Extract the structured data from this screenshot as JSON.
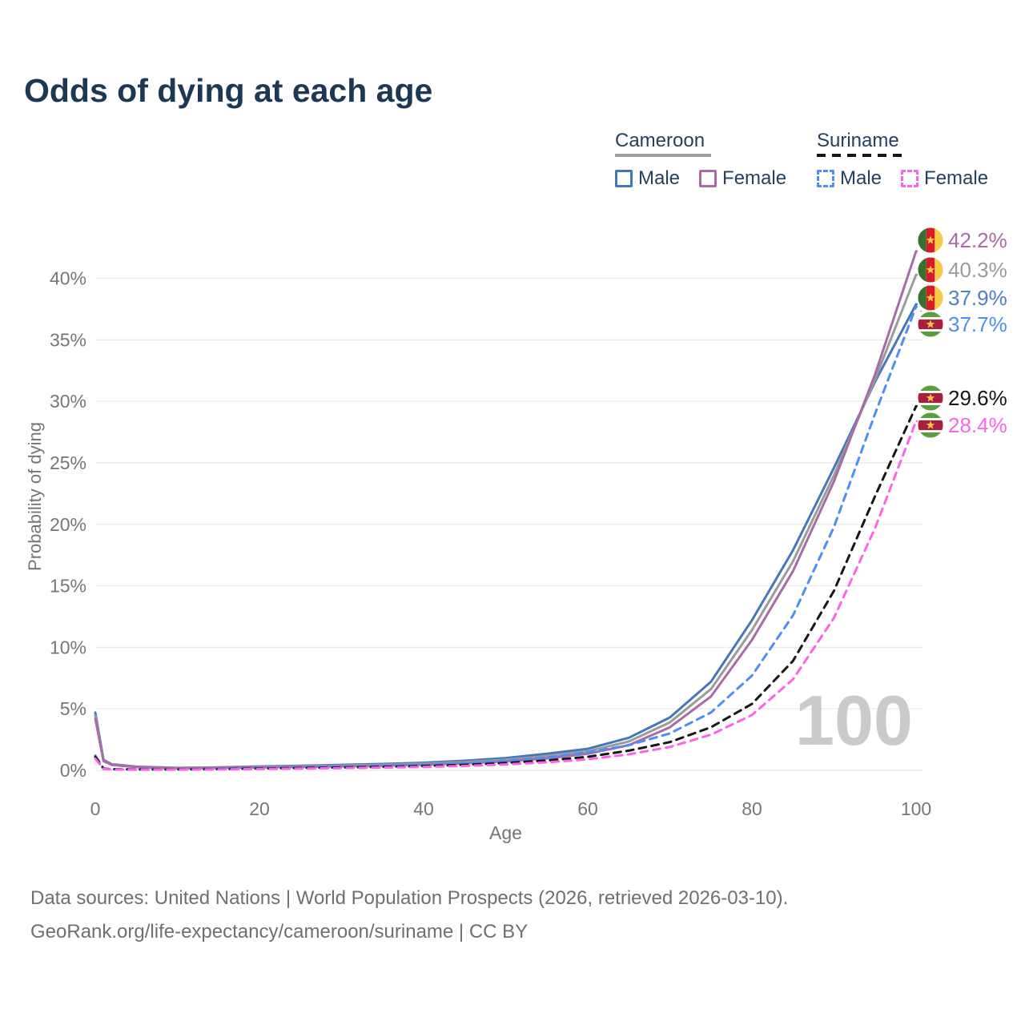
{
  "title": "Odds of dying at each age",
  "legend": {
    "groups": [
      {
        "title": "Cameroon",
        "line_style": "solid",
        "line_color": "#9e9e9e",
        "items": [
          {
            "label": "Male",
            "color": "#4477b9",
            "swatch": "solid"
          },
          {
            "label": "Female",
            "color": "#a96ba5",
            "swatch": "solid"
          }
        ]
      },
      {
        "title": "Suriname",
        "line_style": "dashed",
        "line_color": "#151515",
        "items": [
          {
            "label": "Male",
            "color": "#4d8df6",
            "swatch": "dashed"
          },
          {
            "label": "Female",
            "color": "#fd64e4",
            "swatch": "dashed"
          }
        ]
      }
    ]
  },
  "chart_data": {
    "type": "line",
    "title": "Odds of dying at each age",
    "xlabel": "Age",
    "ylabel": "Probability of dying",
    "xlim": [
      0,
      100
    ],
    "ylim": [
      0,
      44
    ],
    "grid": true,
    "legend_position": "top-right",
    "x_ticks": [
      0,
      20,
      40,
      60,
      80,
      100
    ],
    "y_ticks": [
      0,
      5,
      10,
      15,
      20,
      25,
      30,
      35,
      40
    ],
    "y_tick_labels": [
      "0%",
      "5%",
      "10%",
      "15%",
      "20%",
      "25%",
      "30%",
      "35%",
      "40%"
    ],
    "x": [
      0,
      1,
      2,
      5,
      10,
      15,
      20,
      25,
      30,
      35,
      40,
      45,
      50,
      55,
      60,
      65,
      70,
      75,
      80,
      85,
      90,
      95,
      100
    ],
    "series": [
      {
        "name": "Cameroon Male",
        "country": "cameroon",
        "color": "#4477b9",
        "dashed": false,
        "values": [
          4.7,
          0.85,
          0.5,
          0.3,
          0.2,
          0.25,
          0.32,
          0.38,
          0.45,
          0.52,
          0.62,
          0.78,
          1.0,
          1.35,
          1.75,
          2.65,
          4.3,
          7.2,
          12.2,
          17.9,
          24.6,
          31.6,
          37.9
        ]
      },
      {
        "name": "Cameroon",
        "country": "cameroon",
        "color": "#9b9b9b",
        "dashed": false,
        "values": [
          4.45,
          0.8,
          0.47,
          0.28,
          0.19,
          0.22,
          0.28,
          0.33,
          0.39,
          0.45,
          0.54,
          0.67,
          0.86,
          1.15,
          1.55,
          2.35,
          3.9,
          6.6,
          11.4,
          17.0,
          24.0,
          31.8,
          40.3
        ]
      },
      {
        "name": "Cameroon Female",
        "country": "cameroon",
        "color": "#a96ba5",
        "dashed": false,
        "values": [
          4.2,
          0.75,
          0.45,
          0.26,
          0.17,
          0.2,
          0.24,
          0.28,
          0.33,
          0.38,
          0.46,
          0.57,
          0.73,
          0.97,
          1.35,
          2.05,
          3.5,
          6.0,
          10.6,
          16.2,
          23.5,
          32.2,
          42.2
        ]
      },
      {
        "name": "Suriname Male",
        "country": "suriname",
        "color": "#4d8df6",
        "dashed": true,
        "values": [
          1.2,
          0.15,
          0.1,
          0.08,
          0.08,
          0.12,
          0.2,
          0.25,
          0.3,
          0.36,
          0.45,
          0.58,
          0.78,
          1.05,
          1.45,
          2.05,
          3.0,
          4.7,
          7.7,
          12.6,
          19.8,
          29.0,
          37.7
        ]
      },
      {
        "name": "Suriname",
        "country": "suriname",
        "color": "#161616",
        "dashed": true,
        "values": [
          1.1,
          0.13,
          0.09,
          0.07,
          0.07,
          0.1,
          0.15,
          0.19,
          0.23,
          0.28,
          0.35,
          0.45,
          0.6,
          0.8,
          1.1,
          1.6,
          2.3,
          3.5,
          5.4,
          8.9,
          14.6,
          22.3,
          29.6
        ]
      },
      {
        "name": "Suriname Female",
        "country": "suriname",
        "color": "#fd64e4",
        "dashed": true,
        "values": [
          0.95,
          0.11,
          0.08,
          0.06,
          0.06,
          0.08,
          0.11,
          0.14,
          0.18,
          0.22,
          0.28,
          0.36,
          0.48,
          0.65,
          0.9,
          1.3,
          1.9,
          2.9,
          4.5,
          7.4,
          12.4,
          19.7,
          28.4
        ]
      }
    ]
  },
  "end_labels": [
    {
      "value": "42.2%",
      "color": "#a96ba5",
      "icon": "cameroon-flag-icon",
      "country": "cameroon",
      "series": "Cameroon Female"
    },
    {
      "value": "40.3%",
      "color": "#9b9b9b",
      "icon": "cameroon-flag-icon",
      "country": "cameroon",
      "series": "Cameroon"
    },
    {
      "value": "37.9%",
      "color": "#4f7fc6",
      "icon": "cameroon-flag-icon",
      "country": "cameroon",
      "series": "Cameroon Male"
    },
    {
      "value": "37.7%",
      "color": "#4d8df6",
      "icon": "suriname-flag-icon",
      "country": "suriname",
      "series": "Suriname Male"
    },
    {
      "value": "29.6%",
      "color": "#161616",
      "icon": "suriname-flag-icon",
      "country": "suriname",
      "series": "Suriname"
    },
    {
      "value": "28.4%",
      "color": "#fd64e4",
      "icon": "suriname-flag-icon",
      "country": "suriname",
      "series": "Suriname Female"
    }
  ],
  "watermark": "100",
  "footer": {
    "line1": "Data sources: United Nations | World Population Prospects (2026, retrieved 2026-03-10).",
    "line2": "GeoRank.org/life-expectancy/cameroon/suriname | CC BY"
  }
}
